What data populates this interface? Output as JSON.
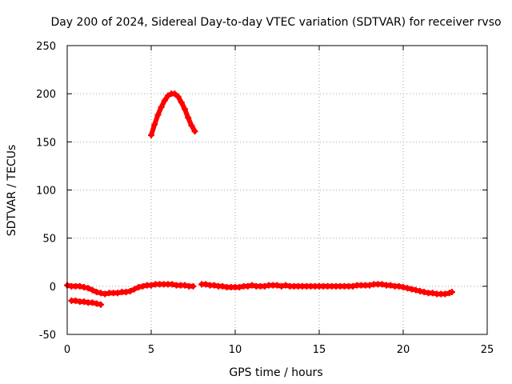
{
  "chart_data": {
    "type": "scatter",
    "title": "Day 200 of 2024, Sidereal Day-to-day VTEC variation (SDTVAR) for receiver rvso",
    "xlabel": "GPS time / hours",
    "ylabel": "SDTVAR / TECUs",
    "xlim": [
      0,
      25
    ],
    "ylim": [
      -50,
      250
    ],
    "xticks": [
      0,
      5,
      10,
      15,
      20,
      25
    ],
    "yticks": [
      -50,
      0,
      50,
      100,
      150,
      200,
      250
    ],
    "grid": true,
    "marker": "plus",
    "color": "#ff0000",
    "series": [
      {
        "name": "main",
        "x": [
          0.0,
          0.25,
          0.5,
          0.75,
          1.0,
          1.25,
          1.5,
          1.75,
          2.0,
          2.25,
          2.5,
          2.75,
          3.0,
          3.25,
          3.5,
          3.75,
          4.0,
          4.25,
          4.5,
          4.75,
          5.0,
          5.25,
          5.5,
          5.75,
          6.0,
          6.25,
          6.5,
          6.75,
          7.0,
          7.25,
          7.5,
          7.75,
          8.0,
          8.25,
          8.5,
          8.75,
          9.0,
          9.25,
          9.5,
          9.75,
          10.0,
          10.25,
          10.5,
          10.75,
          11.0,
          11.25,
          11.5,
          11.75,
          12.0,
          12.25,
          12.5,
          12.75,
          13.0,
          13.25,
          13.5,
          13.75,
          14.0,
          14.25,
          14.5,
          14.75,
          15.0,
          15.25,
          15.5,
          15.75,
          16.0,
          16.25,
          16.5,
          16.75,
          17.0,
          17.25,
          17.5,
          17.75,
          18.0,
          18.25,
          18.5,
          18.75,
          19.0,
          19.25,
          19.5,
          19.75,
          20.0,
          20.25,
          20.5,
          20.75,
          21.0,
          21.25,
          21.5,
          21.75,
          22.0,
          22.25,
          22.5,
          22.75,
          22.9
        ],
        "y": [
          1,
          0,
          0,
          0,
          -1,
          -2,
          -4,
          -6,
          -7,
          -8,
          -7,
          -7,
          -7,
          -6,
          -6,
          -5,
          -3,
          -1,
          0,
          1,
          1,
          2,
          2,
          2,
          2,
          2,
          1,
          1,
          1,
          0,
          0,
          null,
          2,
          2,
          1,
          1,
          0,
          0,
          -1,
          -1,
          -1,
          -1,
          0,
          0,
          1,
          0,
          0,
          0,
          1,
          1,
          1,
          0,
          1,
          0,
          0,
          0,
          0,
          0,
          0,
          0,
          0,
          0,
          0,
          0,
          0,
          0,
          0,
          0,
          0,
          1,
          1,
          1,
          1,
          2,
          2,
          2,
          1,
          1,
          0,
          0,
          -1,
          -2,
          -3,
          -4,
          -5,
          -6,
          -7,
          -7,
          -8,
          -8,
          -8,
          -7,
          -6
        ]
      },
      {
        "name": "low-segment",
        "x": [
          0.25,
          0.5,
          0.75,
          1.0,
          1.25,
          1.5,
          1.75,
          2.0
        ],
        "y": [
          -15,
          -15,
          -16,
          -16,
          -17,
          -17,
          -18,
          -19
        ]
      },
      {
        "name": "arc",
        "x": [
          5.0,
          5.2,
          5.4,
          5.6,
          5.8,
          6.0,
          6.2,
          6.4,
          6.6,
          6.8,
          7.0,
          7.2,
          7.4,
          7.6
        ],
        "y": [
          157,
          168,
          178,
          186,
          193,
          198,
          200,
          200,
          197,
          191,
          184,
          175,
          167,
          161
        ]
      }
    ]
  }
}
